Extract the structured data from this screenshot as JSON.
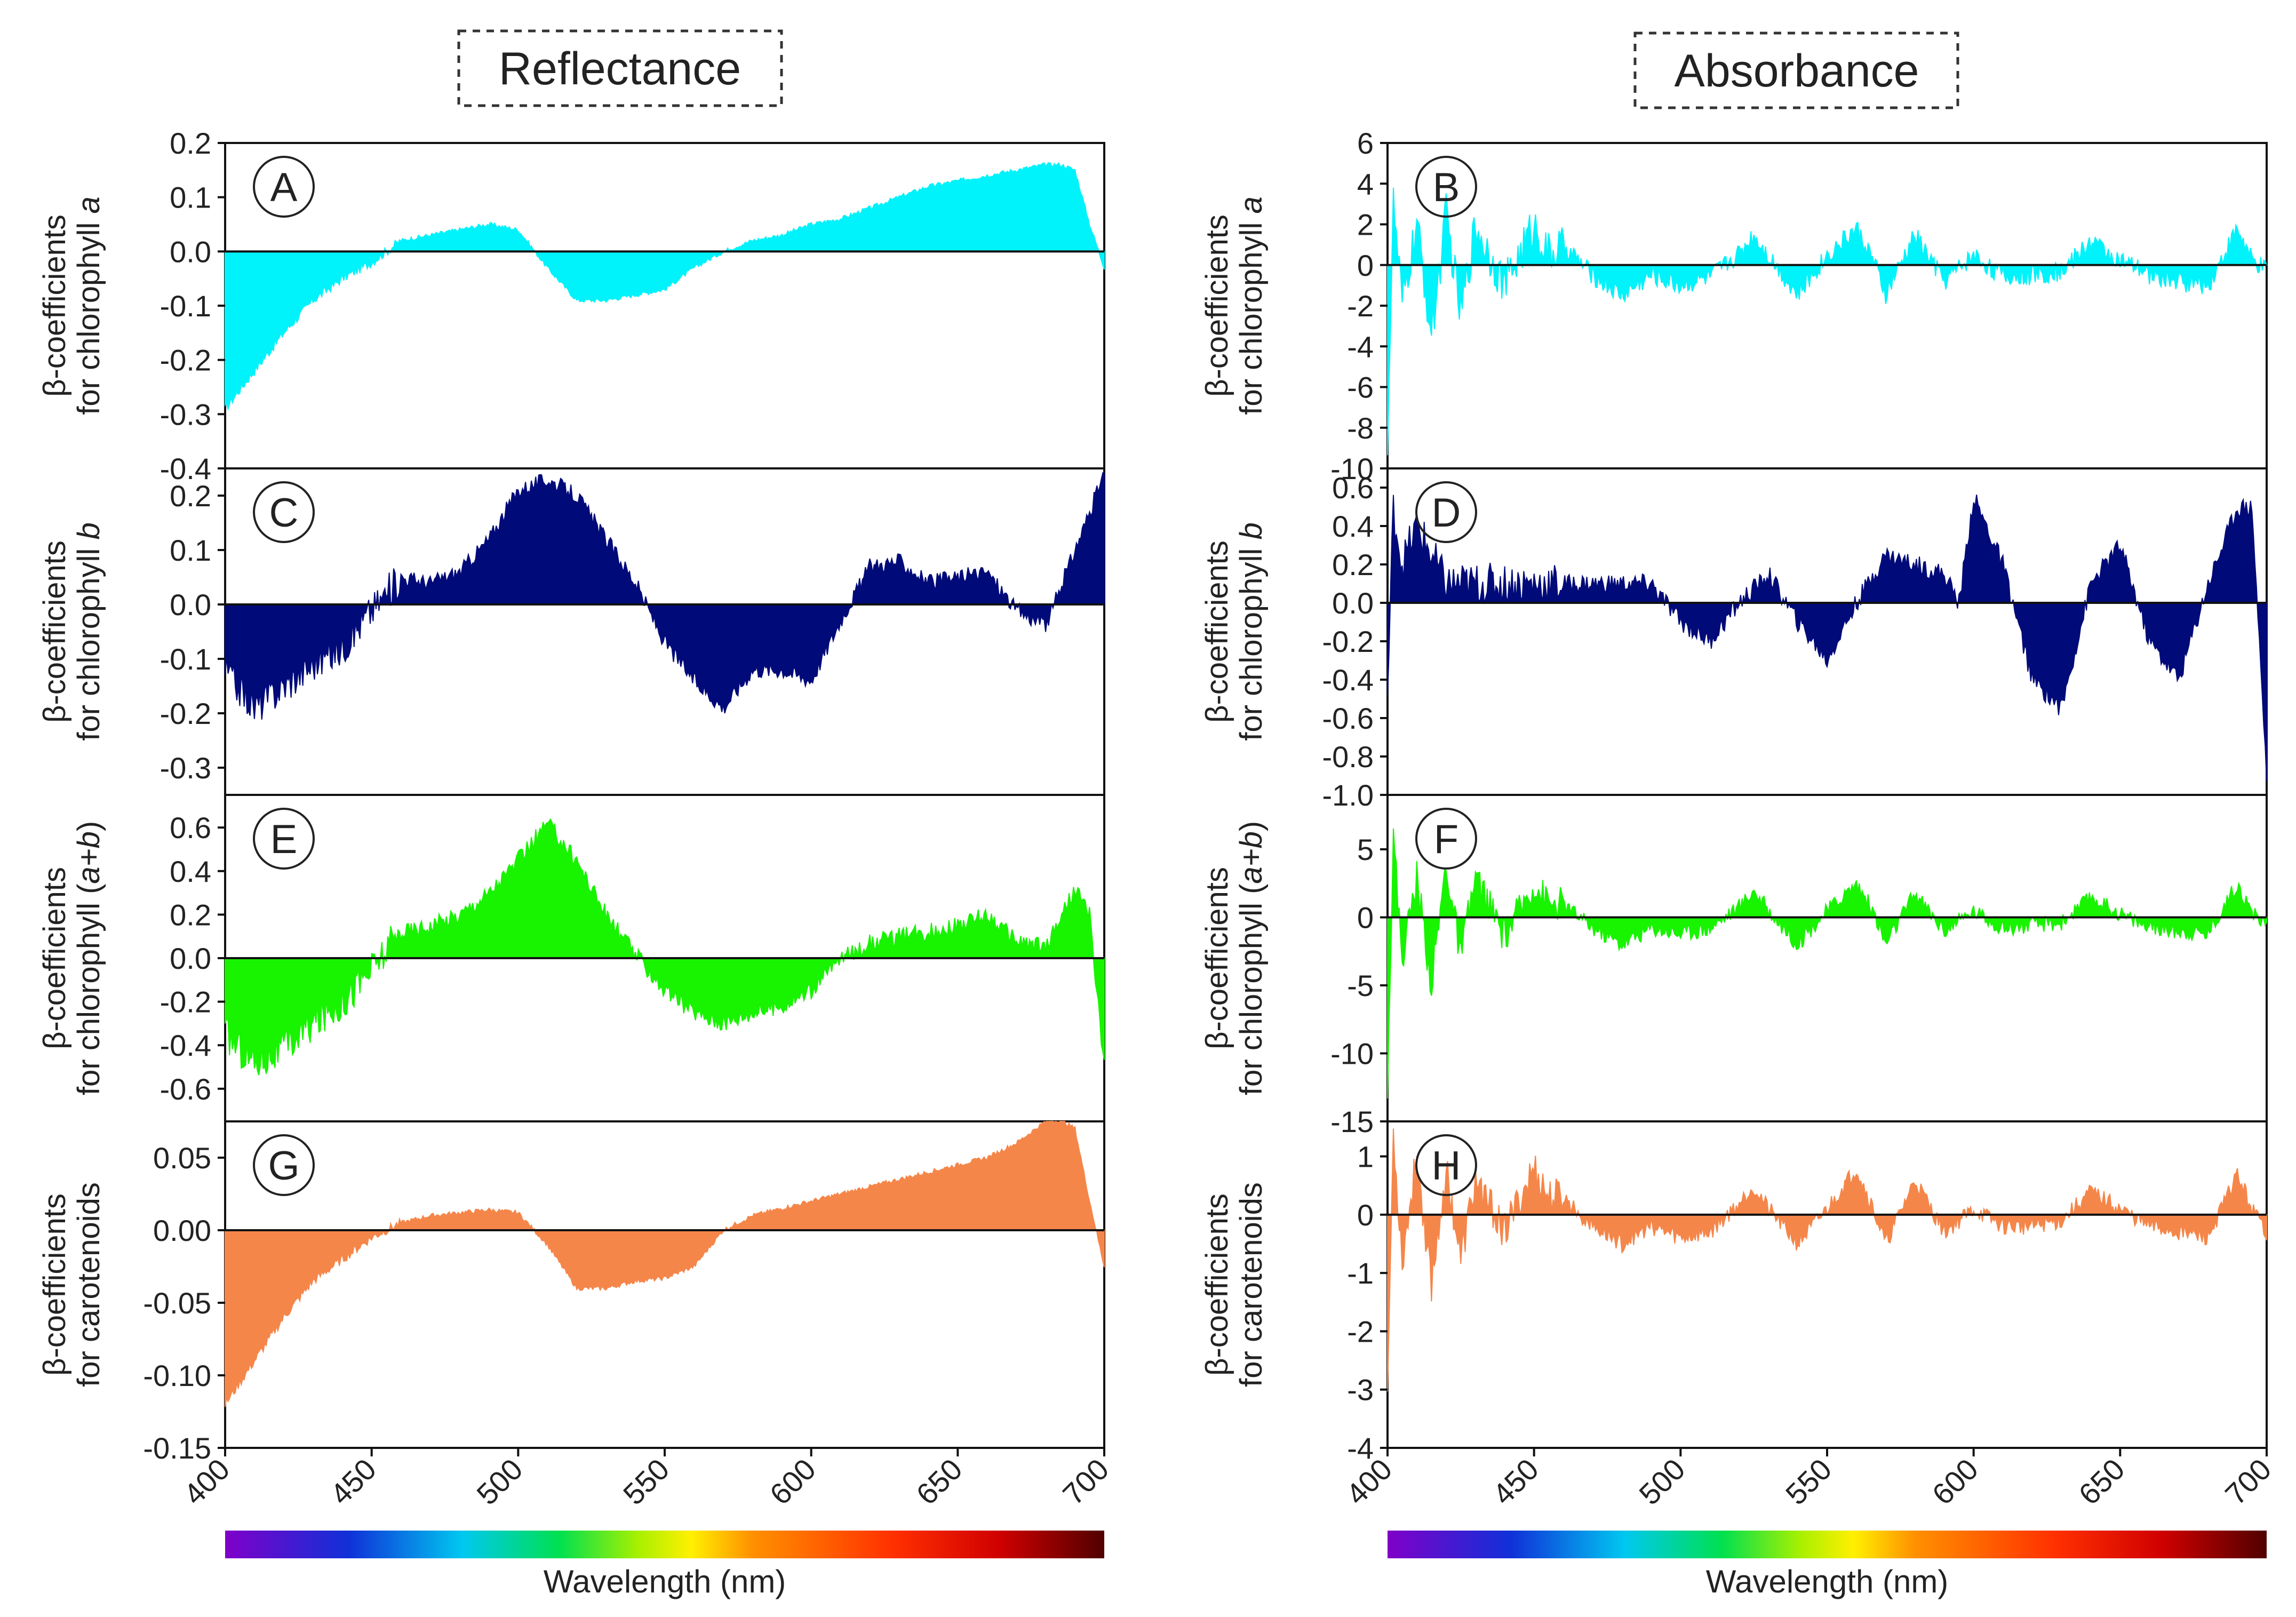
{
  "figure": {
    "col_titles": [
      "Reflectance",
      "Absorbance"
    ],
    "x_axis_label": "Wavelength (nm)",
    "x_ticks": [
      400,
      450,
      500,
      550,
      600,
      650,
      700
    ],
    "x_range": [
      400,
      700
    ]
  },
  "chart_data": [
    {
      "type": "area",
      "id": "A",
      "letter": "A",
      "column": "Reflectance",
      "ylabel": "β-coefficients",
      "ylabel2_prefix": "for chlorophyll ",
      "ylabel2_italic": "a",
      "color": "#00f2fa",
      "ylim": [
        -0.4,
        0.2
      ],
      "yticks": [
        "0.2",
        "0.1",
        "0.0",
        "-0.1",
        "-0.2",
        "-0.3",
        "-0.4"
      ],
      "ytick_values": [
        0.2,
        0.1,
        0.0,
        -0.1,
        -0.2,
        -0.3,
        -0.4
      ],
      "x": [
        400,
        410,
        420,
        430,
        440,
        450,
        460,
        470,
        480,
        490,
        500,
        510,
        520,
        530,
        540,
        550,
        560,
        570,
        580,
        590,
        600,
        610,
        620,
        630,
        640,
        650,
        660,
        670,
        680,
        685,
        690,
        695,
        700
      ],
      "y": [
        -0.29,
        -0.22,
        -0.15,
        -0.09,
        -0.05,
        -0.02,
        0.02,
        0.03,
        0.04,
        0.05,
        0.04,
        -0.03,
        -0.09,
        -0.09,
        -0.08,
        -0.07,
        -0.03,
        0.0,
        0.02,
        0.03,
        0.05,
        0.06,
        0.08,
        0.1,
        0.12,
        0.13,
        0.14,
        0.15,
        0.16,
        0.16,
        0.15,
        0.05,
        -0.03
      ],
      "noise": 0.004
    },
    {
      "type": "area",
      "id": "B",
      "letter": "B",
      "column": "Absorbance",
      "ylabel": "β-coefficients",
      "ylabel2_prefix": "for chlorophyll ",
      "ylabel2_italic": "a",
      "color": "#00f2fa",
      "ylim": [
        -10,
        6
      ],
      "yticks": [
        "6",
        "4",
        "2",
        "0",
        "-2",
        "-4",
        "-6",
        "-8",
        "-10"
      ],
      "ytick_values": [
        6,
        4,
        2,
        0,
        -2,
        -4,
        -6,
        -8,
        -10
      ],
      "x": [
        400,
        402,
        405,
        410,
        415,
        420,
        425,
        430,
        440,
        450,
        455,
        460,
        470,
        480,
        490,
        500,
        510,
        520,
        525,
        530,
        540,
        550,
        560,
        565,
        570,
        580,
        590,
        600,
        610,
        620,
        630,
        640,
        650,
        660,
        670,
        680,
        690,
        695,
        700
      ],
      "y": [
        -8.5,
        3.0,
        -2.0,
        2.0,
        -3.5,
        2.5,
        -2.5,
        2.0,
        -1.0,
        2.0,
        0.5,
        1.0,
        -0.5,
        -1.5,
        -0.5,
        -1.0,
        -0.6,
        0.6,
        1.5,
        0.5,
        -1.5,
        0.5,
        1.8,
        0.5,
        -1.5,
        1.5,
        -0.8,
        0.5,
        -0.6,
        -0.5,
        -0.3,
        1.2,
        0.2,
        -0.5,
        -0.8,
        -1.0,
        1.8,
        0.2,
        -0.3
      ],
      "noise": 0.5
    },
    {
      "type": "area",
      "id": "C",
      "letter": "C",
      "column": "Reflectance",
      "ylabel": "β-coefficients",
      "ylabel2_prefix": "for chlorophyll ",
      "ylabel2_italic": "b",
      "color": "#000a78",
      "ylim": [
        -0.35,
        0.25
      ],
      "yticks": [
        "0.2",
        "0.1",
        "0.0",
        "-0.1",
        "-0.2",
        "-0.3"
      ],
      "ytick_values": [
        0.2,
        0.1,
        0.0,
        -0.1,
        -0.2,
        -0.3
      ],
      "x": [
        400,
        410,
        420,
        430,
        440,
        450,
        460,
        470,
        480,
        490,
        500,
        510,
        520,
        530,
        540,
        550,
        560,
        570,
        580,
        590,
        600,
        610,
        620,
        630,
        640,
        650,
        660,
        670,
        680,
        690,
        700
      ],
      "y": [
        -0.12,
        -0.19,
        -0.15,
        -0.11,
        -0.08,
        -0.01,
        0.05,
        0.04,
        0.06,
        0.12,
        0.21,
        0.23,
        0.2,
        0.12,
        0.04,
        -0.07,
        -0.14,
        -0.19,
        -0.12,
        -0.12,
        -0.14,
        -0.03,
        0.07,
        0.08,
        0.04,
        0.05,
        0.06,
        -0.01,
        -0.04,
        0.1,
        0.24
      ],
      "noise": 0.015
    },
    {
      "type": "area",
      "id": "D",
      "letter": "D",
      "column": "Absorbance",
      "ylabel": "β-coefficients",
      "ylabel2_prefix": "for chlorophyll ",
      "ylabel2_italic": "b",
      "color": "#000a78",
      "ylim": [
        -1.0,
        0.7
      ],
      "yticks": [
        "0.6",
        "0.4",
        "0.2",
        "0.0",
        "-0.2",
        "-0.4",
        "-0.6",
        "-0.8",
        "-1.0"
      ],
      "ytick_values": [
        0.6,
        0.4,
        0.2,
        0.0,
        -0.2,
        -0.4,
        -0.6,
        -0.8,
        -1.0
      ],
      "x": [
        400,
        402,
        405,
        410,
        420,
        430,
        440,
        450,
        460,
        470,
        480,
        490,
        500,
        510,
        520,
        530,
        540,
        550,
        560,
        570,
        580,
        590,
        595,
        600,
        610,
        620,
        630,
        640,
        650,
        660,
        670,
        680,
        690,
        695,
        700
      ],
      "y": [
        -0.5,
        0.5,
        0.2,
        0.4,
        0.1,
        0.1,
        0.1,
        0.1,
        0.1,
        0.1,
        0.1,
        0.1,
        -0.1,
        -0.2,
        0.0,
        0.15,
        -0.1,
        -0.3,
        0.0,
        0.25,
        0.2,
        0.15,
        0.0,
        0.55,
        0.2,
        -0.4,
        -0.55,
        0.1,
        0.3,
        -0.2,
        -0.4,
        0.1,
        0.5,
        0.5,
        -0.9
      ],
      "noise": 0.05
    },
    {
      "type": "area",
      "id": "E",
      "letter": "E",
      "column": "Reflectance",
      "ylabel": "β-coefficients",
      "ylabel2_prefix": "for chlorophyll (",
      "ylabel2_italic": "a+b",
      "ylabel2_suffix": ")",
      "color": "#18f300",
      "ylim": [
        -0.75,
        0.75
      ],
      "yticks": [
        "0.6",
        "0.4",
        "0.2",
        "0.0",
        "-0.2",
        "-0.4",
        "-0.6"
      ],
      "ytick_values": [
        0.6,
        0.4,
        0.2,
        0.0,
        -0.2,
        -0.4,
        -0.6
      ],
      "x": [
        400,
        410,
        420,
        430,
        440,
        450,
        460,
        470,
        480,
        490,
        500,
        510,
        520,
        530,
        540,
        550,
        560,
        570,
        580,
        590,
        600,
        610,
        620,
        630,
        640,
        650,
        660,
        670,
        680,
        690,
        695,
        700
      ],
      "y": [
        -0.35,
        -0.48,
        -0.42,
        -0.3,
        -0.2,
        -0.05,
        0.12,
        0.15,
        0.2,
        0.3,
        0.45,
        0.62,
        0.45,
        0.2,
        0.02,
        -0.15,
        -0.25,
        -0.3,
        -0.25,
        -0.22,
        -0.15,
        0.0,
        0.07,
        0.1,
        0.12,
        0.15,
        0.2,
        0.08,
        0.05,
        0.32,
        0.2,
        -0.5
      ],
      "noise": 0.04
    },
    {
      "type": "area",
      "id": "F",
      "letter": "F",
      "column": "Absorbance",
      "ylabel": "β-coefficients",
      "ylabel2_prefix": "for chlorophyll (",
      "ylabel2_italic": "a+b",
      "ylabel2_suffix": ")",
      "color": "#18f300",
      "ylim": [
        -15,
        9
      ],
      "yticks": [
        "5",
        "0",
        "-5",
        "-10",
        "-15"
      ],
      "ytick_values": [
        5,
        0,
        -5,
        -10,
        -15
      ],
      "x": [
        400,
        402,
        405,
        410,
        415,
        420,
        425,
        430,
        440,
        450,
        455,
        460,
        470,
        480,
        490,
        500,
        510,
        520,
        525,
        530,
        540,
        550,
        560,
        565,
        570,
        580,
        590,
        600,
        610,
        620,
        630,
        640,
        650,
        660,
        670,
        680,
        690,
        695,
        700
      ],
      "y": [
        -12.0,
        6.0,
        -3.0,
        3.0,
        -5.0,
        4.0,
        -3.0,
        3.0,
        -1.5,
        2.5,
        1.0,
        1.0,
        -0.8,
        -2.0,
        -0.8,
        -1.2,
        -0.8,
        0.8,
        2.0,
        0.5,
        -2.0,
        0.5,
        2.5,
        0.8,
        -2.0,
        1.8,
        -1.0,
        0.5,
        -0.8,
        -0.6,
        -0.4,
        1.5,
        0.3,
        -0.8,
        -1.0,
        -1.2,
        2.5,
        0.3,
        -0.5
      ],
      "noise": 0.6
    },
    {
      "type": "area",
      "id": "G",
      "letter": "G",
      "column": "Reflectance",
      "ylabel": "β-coefficients",
      "ylabel2_prefix": "for carotenoids",
      "ylabel2_italic": "",
      "color": "#f5864a",
      "ylim": [
        -0.15,
        0.075
      ],
      "yticks": [
        "0.05",
        "0.00",
        "-0.05",
        "-0.10",
        "-0.15"
      ],
      "ytick_values": [
        0.05,
        0.0,
        -0.05,
        -0.1,
        -0.15
      ],
      "x": [
        400,
        410,
        420,
        430,
        440,
        450,
        460,
        470,
        480,
        490,
        500,
        510,
        520,
        530,
        540,
        550,
        560,
        570,
        580,
        590,
        600,
        610,
        620,
        630,
        640,
        650,
        660,
        670,
        680,
        685,
        690,
        695,
        700
      ],
      "y": [
        -0.12,
        -0.09,
        -0.06,
        -0.035,
        -0.02,
        -0.005,
        0.005,
        0.01,
        0.012,
        0.014,
        0.012,
        -0.01,
        -0.04,
        -0.04,
        -0.035,
        -0.033,
        -0.025,
        0.0,
        0.01,
        0.015,
        0.02,
        0.025,
        0.03,
        0.035,
        0.04,
        0.045,
        0.05,
        0.06,
        0.075,
        0.076,
        0.07,
        0.02,
        -0.025
      ],
      "noise": 0.0015
    },
    {
      "type": "area",
      "id": "H",
      "letter": "H",
      "column": "Absorbance",
      "ylabel": "β-coefficients",
      "ylabel2_prefix": "for carotenoids",
      "ylabel2_italic": "",
      "color": "#f5864a",
      "ylim": [
        -4,
        1.6
      ],
      "yticks": [
        "1",
        "0",
        "-1",
        "-2",
        "-3",
        "-4"
      ],
      "ytick_values": [
        1,
        0,
        -1,
        -2,
        -3,
        -4
      ],
      "x": [
        400,
        402,
        405,
        410,
        415,
        420,
        425,
        430,
        440,
        450,
        455,
        460,
        470,
        480,
        490,
        500,
        510,
        520,
        525,
        530,
        540,
        550,
        560,
        565,
        570,
        580,
        590,
        600,
        610,
        620,
        630,
        640,
        650,
        660,
        670,
        680,
        690,
        695,
        700
      ],
      "y": [
        -3.0,
        1.4,
        -0.8,
        1.0,
        -1.2,
        0.8,
        -0.8,
        0.6,
        -0.3,
        0.8,
        0.3,
        0.3,
        -0.2,
        -0.5,
        -0.2,
        -0.4,
        -0.3,
        0.2,
        0.5,
        0.1,
        -0.5,
        0.1,
        0.8,
        0.2,
        -0.5,
        0.6,
        -0.3,
        0.1,
        -0.2,
        -0.2,
        -0.1,
        0.4,
        0.1,
        -0.2,
        -0.3,
        -0.4,
        0.7,
        0.1,
        -0.3
      ],
      "noise": 0.15
    }
  ]
}
